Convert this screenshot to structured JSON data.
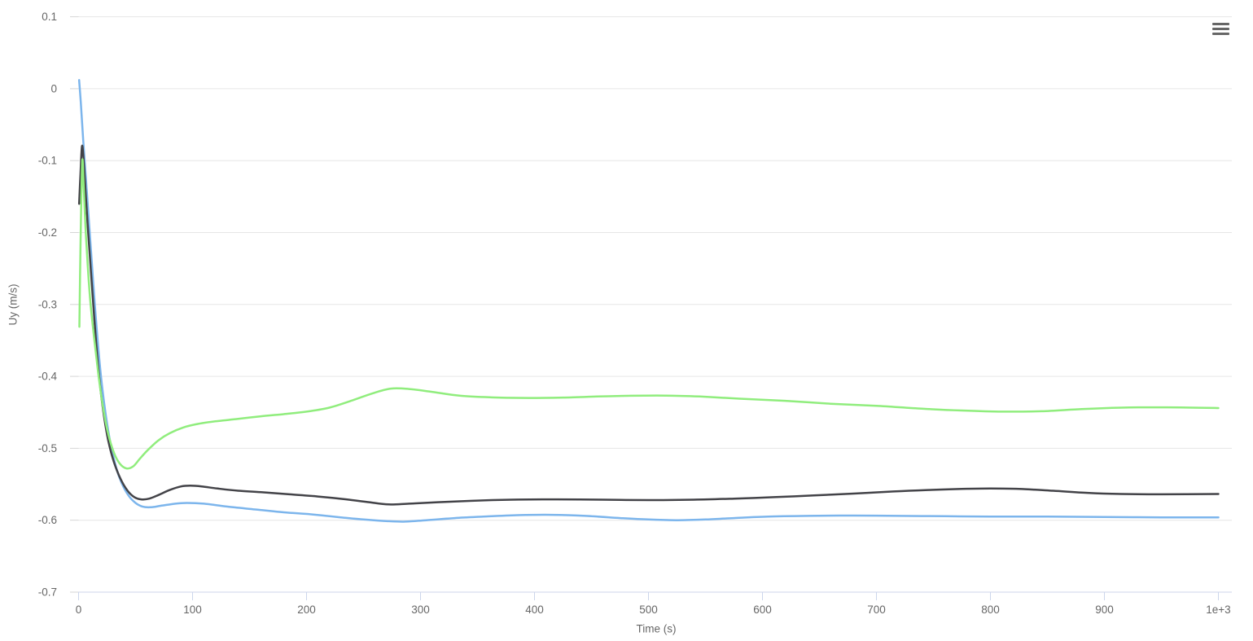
{
  "chart": {
    "menu_icon": "hamburger-icon",
    "colors": {
      "background": "#ffffff",
      "grid_line": "#e6e6e6",
      "x_axis_line": "#ccd6eb",
      "x_tick": "#ccd6eb",
      "y_tick": "#d6d6d6",
      "label_text": "#666666",
      "menu_icon": "#666666"
    }
  },
  "chart_data": {
    "type": "line",
    "title": "",
    "xlabel": "Time (s)",
    "ylabel": "Uy (m/s)",
    "xlim": [
      0,
      1000
    ],
    "ylim": [
      -0.7,
      0.1
    ],
    "grid": true,
    "legend": "none",
    "x_ticks": [
      0,
      100,
      200,
      300,
      400,
      500,
      600,
      700,
      800,
      900,
      1000
    ],
    "x_tick_labels": [
      "0",
      "100",
      "200",
      "300",
      "400",
      "500",
      "600",
      "700",
      "800",
      "900",
      "1e+3"
    ],
    "y_ticks": [
      0.1,
      0,
      -0.1,
      -0.2,
      -0.3,
      -0.4,
      -0.5,
      -0.6,
      -0.7
    ],
    "y_tick_labels": [
      "0.1",
      "0",
      "-0.1",
      "-0.2",
      "-0.3",
      "-0.4",
      "-0.5",
      "-0.6",
      "-0.7"
    ],
    "series": [
      {
        "color_name": "blue",
        "color": "#7cb5ec",
        "points": [
          [
            0.5,
            0.012
          ],
          [
            2,
            -0.02
          ],
          [
            4,
            -0.07
          ],
          [
            6,
            -0.115
          ],
          [
            8,
            -0.16
          ],
          [
            10,
            -0.205
          ],
          [
            12,
            -0.25
          ],
          [
            14,
            -0.295
          ],
          [
            17,
            -0.355
          ],
          [
            20,
            -0.405
          ],
          [
            24,
            -0.455
          ],
          [
            28,
            -0.493
          ],
          [
            33,
            -0.527
          ],
          [
            38,
            -0.549
          ],
          [
            44,
            -0.566
          ],
          [
            50,
            -0.576
          ],
          [
            56,
            -0.581
          ],
          [
            63,
            -0.582
          ],
          [
            72,
            -0.58
          ],
          [
            85,
            -0.577
          ],
          [
            95,
            -0.576
          ],
          [
            110,
            -0.577
          ],
          [
            130,
            -0.581
          ],
          [
            155,
            -0.585
          ],
          [
            180,
            -0.589
          ],
          [
            205,
            -0.592
          ],
          [
            230,
            -0.596
          ],
          [
            250,
            -0.599
          ],
          [
            268,
            -0.601
          ],
          [
            285,
            -0.602
          ],
          [
            305,
            -0.6
          ],
          [
            330,
            -0.597
          ],
          [
            355,
            -0.595
          ],
          [
            385,
            -0.593
          ],
          [
            415,
            -0.5925
          ],
          [
            445,
            -0.594
          ],
          [
            475,
            -0.597
          ],
          [
            500,
            -0.599
          ],
          [
            525,
            -0.6
          ],
          [
            550,
            -0.599
          ],
          [
            575,
            -0.597
          ],
          [
            605,
            -0.595
          ],
          [
            640,
            -0.594
          ],
          [
            680,
            -0.5935
          ],
          [
            720,
            -0.594
          ],
          [
            760,
            -0.5945
          ],
          [
            800,
            -0.595
          ],
          [
            850,
            -0.595
          ],
          [
            900,
            -0.5955
          ],
          [
            950,
            -0.596
          ],
          [
            1000,
            -0.596
          ]
        ]
      },
      {
        "color_name": "black",
        "color": "#434348",
        "points": [
          [
            0.5,
            -0.16
          ],
          [
            1.5,
            -0.125
          ],
          [
            3,
            -0.08
          ],
          [
            4.5,
            -0.1
          ],
          [
            6,
            -0.14
          ],
          [
            8,
            -0.19
          ],
          [
            10,
            -0.235
          ],
          [
            12,
            -0.28
          ],
          [
            15,
            -0.345
          ],
          [
            18,
            -0.4
          ],
          [
            22,
            -0.452
          ],
          [
            26,
            -0.489
          ],
          [
            31,
            -0.519
          ],
          [
            37,
            -0.543
          ],
          [
            43,
            -0.559
          ],
          [
            49,
            -0.568
          ],
          [
            55,
            -0.571
          ],
          [
            62,
            -0.57
          ],
          [
            70,
            -0.565
          ],
          [
            80,
            -0.558
          ],
          [
            90,
            -0.553
          ],
          [
            98,
            -0.552
          ],
          [
            108,
            -0.553
          ],
          [
            122,
            -0.556
          ],
          [
            140,
            -0.559
          ],
          [
            160,
            -0.561
          ],
          [
            185,
            -0.564
          ],
          [
            210,
            -0.567
          ],
          [
            235,
            -0.571
          ],
          [
            255,
            -0.575
          ],
          [
            272,
            -0.578
          ],
          [
            290,
            -0.577
          ],
          [
            315,
            -0.575
          ],
          [
            345,
            -0.573
          ],
          [
            380,
            -0.5715
          ],
          [
            420,
            -0.571
          ],
          [
            460,
            -0.5715
          ],
          [
            500,
            -0.572
          ],
          [
            540,
            -0.5715
          ],
          [
            575,
            -0.57
          ],
          [
            610,
            -0.568
          ],
          [
            645,
            -0.5655
          ],
          [
            680,
            -0.563
          ],
          [
            715,
            -0.56
          ],
          [
            745,
            -0.558
          ],
          [
            775,
            -0.5565
          ],
          [
            800,
            -0.556
          ],
          [
            825,
            -0.5565
          ],
          [
            855,
            -0.559
          ],
          [
            885,
            -0.562
          ],
          [
            915,
            -0.5635
          ],
          [
            950,
            -0.564
          ],
          [
            1000,
            -0.5635
          ]
        ]
      },
      {
        "color_name": "green",
        "color": "#90ed7d",
        "points": [
          [
            0.7,
            -0.331
          ],
          [
            1.8,
            -0.21
          ],
          [
            3.2,
            -0.101
          ],
          [
            4.5,
            -0.135
          ],
          [
            6,
            -0.19
          ],
          [
            8,
            -0.245
          ],
          [
            10,
            -0.29
          ],
          [
            12.5,
            -0.33
          ],
          [
            15,
            -0.365
          ],
          [
            18,
            -0.405
          ],
          [
            22,
            -0.448
          ],
          [
            26,
            -0.48
          ],
          [
            31,
            -0.506
          ],
          [
            36,
            -0.521
          ],
          [
            42,
            -0.528
          ],
          [
            48,
            -0.525
          ],
          [
            54,
            -0.514
          ],
          [
            61,
            -0.502
          ],
          [
            70,
            -0.489
          ],
          [
            80,
            -0.479
          ],
          [
            92,
            -0.471
          ],
          [
            105,
            -0.466
          ],
          [
            120,
            -0.4625
          ],
          [
            140,
            -0.459
          ],
          [
            160,
            -0.4555
          ],
          [
            180,
            -0.4525
          ],
          [
            200,
            -0.449
          ],
          [
            220,
            -0.4435
          ],
          [
            240,
            -0.4335
          ],
          [
            258,
            -0.4235
          ],
          [
            274,
            -0.417
          ],
          [
            290,
            -0.4175
          ],
          [
            310,
            -0.4215
          ],
          [
            335,
            -0.427
          ],
          [
            365,
            -0.4293
          ],
          [
            395,
            -0.43
          ],
          [
            425,
            -0.4295
          ],
          [
            455,
            -0.428
          ],
          [
            485,
            -0.427
          ],
          [
            515,
            -0.4267
          ],
          [
            545,
            -0.428
          ],
          [
            580,
            -0.431
          ],
          [
            620,
            -0.434
          ],
          [
            660,
            -0.438
          ],
          [
            700,
            -0.441
          ],
          [
            740,
            -0.445
          ],
          [
            775,
            -0.4475
          ],
          [
            810,
            -0.449
          ],
          [
            845,
            -0.4485
          ],
          [
            880,
            -0.4455
          ],
          [
            915,
            -0.4435
          ],
          [
            955,
            -0.443
          ],
          [
            1000,
            -0.444
          ]
        ]
      }
    ]
  }
}
